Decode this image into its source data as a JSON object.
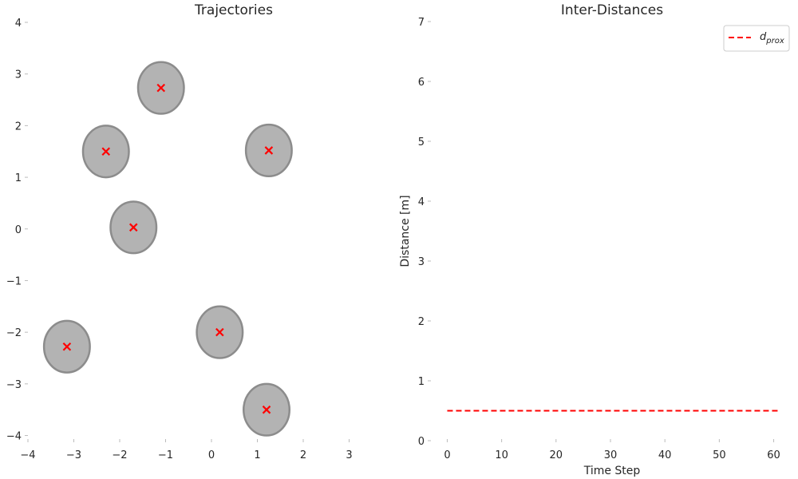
{
  "chart_data": [
    {
      "type": "scatter",
      "title": "Trajectories",
      "xlabel": "",
      "ylabel": "",
      "xlim": [
        -4,
        4
      ],
      "ylim": [
        -4.1,
        4
      ],
      "xticks": [
        -4,
        -3,
        -2,
        -1,
        0,
        1,
        2,
        3
      ],
      "yticks": [
        -4,
        -3,
        -2,
        -1,
        0,
        1,
        2,
        3,
        4
      ],
      "grid": false,
      "points": [
        {
          "x": -1.1,
          "y": 2.73
        },
        {
          "x": -2.3,
          "y": 1.5
        },
        {
          "x": 1.25,
          "y": 1.52
        },
        {
          "x": -1.7,
          "y": 0.03
        },
        {
          "x": 0.18,
          "y": -2.0
        },
        {
          "x": -3.15,
          "y": -2.28
        },
        {
          "x": 1.2,
          "y": -3.5
        }
      ],
      "circle_radius": 0.5,
      "circle_color": "#b3b3b3",
      "circle_edge_color": "#8c8c8c",
      "marker": "x",
      "marker_color": "#ff0000"
    },
    {
      "type": "line",
      "title": "Inter-Distances",
      "xlabel": "Time Step",
      "ylabel": "Distance [m]",
      "xlim": [
        -3,
        63
      ],
      "ylim": [
        0,
        7
      ],
      "xticks": [
        0,
        10,
        20,
        30,
        40,
        50,
        60
      ],
      "yticks": [
        0,
        1,
        2,
        3,
        4,
        5,
        6,
        7
      ],
      "grid": false,
      "legend_position": "top-right",
      "series": [
        {
          "name": "d_prox",
          "name_main": "d",
          "name_sub": "prox",
          "x": [
            0,
            61
          ],
          "y": [
            0.5,
            0.5
          ],
          "color": "#ff0000",
          "style": "dashed"
        }
      ]
    }
  ]
}
